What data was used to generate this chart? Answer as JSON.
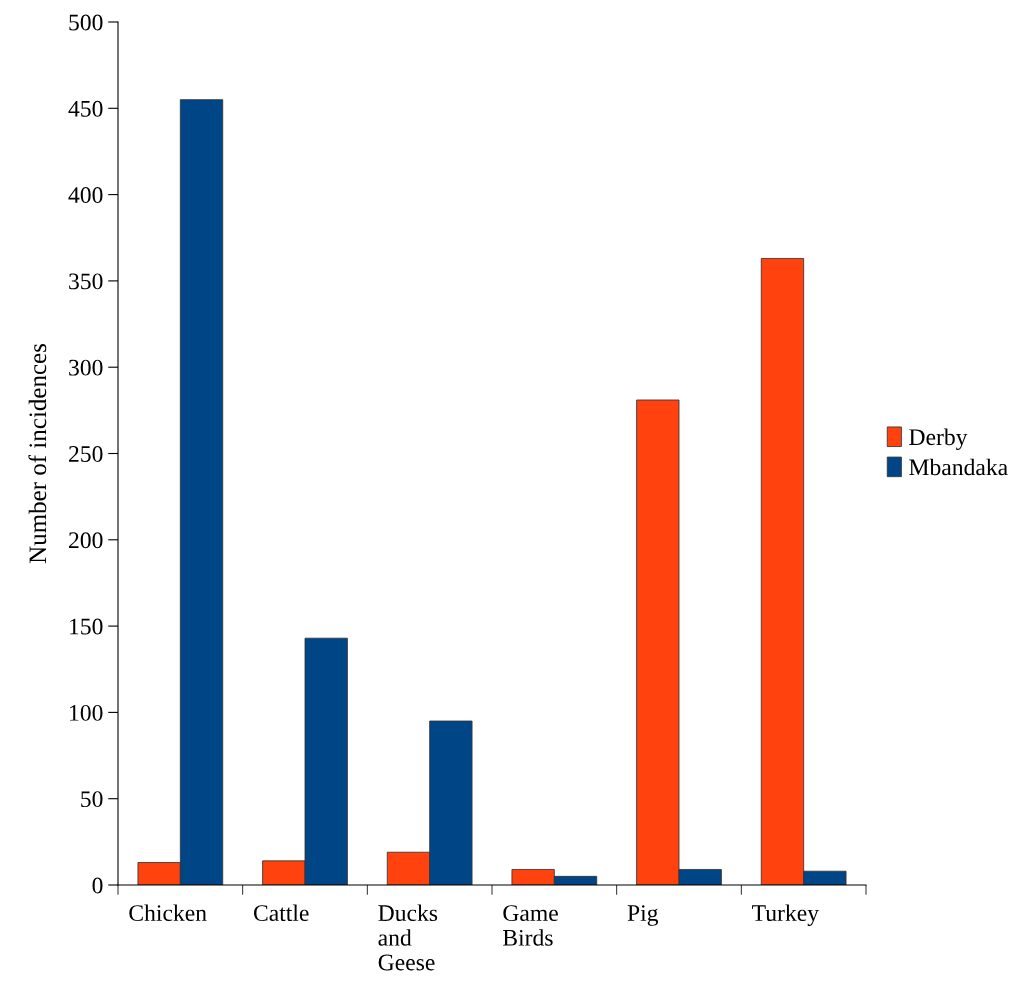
{
  "chart_data": {
    "type": "bar",
    "ylabel": "Number of incidences",
    "categories": [
      "Chicken",
      "Cattle",
      "Ducks and Geese",
      "Game Birds",
      "Pig",
      "Turkey"
    ],
    "series": [
      {
        "name": "Derby",
        "color": "#ff420e",
        "values": [
          13,
          14,
          19,
          9,
          281,
          363
        ]
      },
      {
        "name": "Mbandaka",
        "color": "#004586",
        "values": [
          455,
          143,
          95,
          5,
          9,
          8
        ]
      }
    ],
    "ylim": [
      0,
      500
    ],
    "yticks": [
      0,
      50,
      100,
      150,
      200,
      250,
      300,
      350,
      400,
      450,
      500
    ],
    "grid": false,
    "legend": "right"
  }
}
